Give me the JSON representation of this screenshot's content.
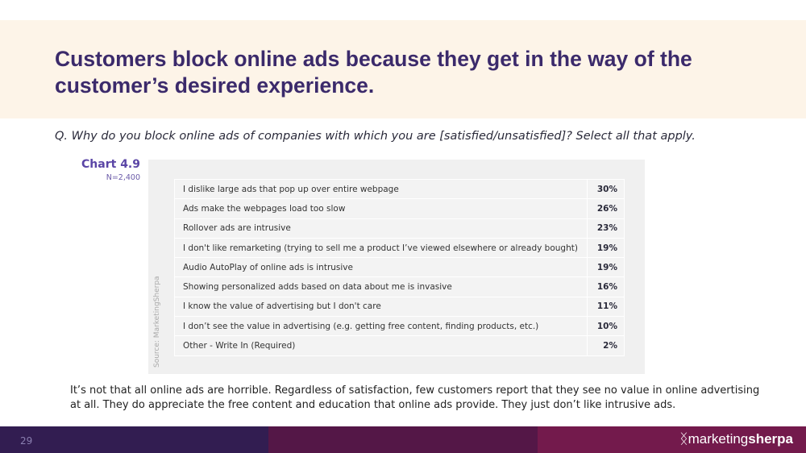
{
  "header": {
    "title": "Customers block online ads because they get in the way of the customer’s desired experience."
  },
  "question": "Q. Why do you block online ads of companies with which you are [satisfied/unsatisfied]? Select all that apply.",
  "chart": {
    "label": "Chart 4.9",
    "n": "N=2,400",
    "source": "Source: MarketingSherpa"
  },
  "chart_data": {
    "type": "table",
    "title": "Chart 4.9",
    "rows": [
      {
        "label": "I dislike large ads that pop up over entire webpage",
        "value": "30%"
      },
      {
        "label": "Ads make the webpages load too slow",
        "value": "26%"
      },
      {
        "label": "Rollover ads are intrusive",
        "value": "23%"
      },
      {
        "label": "I don't like remarketing (trying to sell me a product I’ve viewed elsewhere or already bought)",
        "value": "19%"
      },
      {
        "label": "Audio AutoPlay of online ads is intrusive",
        "value": "19%"
      },
      {
        "label": "Showing personalized adds based on data about me is invasive",
        "value": "16%"
      },
      {
        "label": "I know the value of advertising but I don't care",
        "value": "11%"
      },
      {
        "label": "I don’t see the value in advertising (e.g. getting free content, finding products, etc.)",
        "value": "10%"
      },
      {
        "label": "Other - Write In (Required)",
        "value": "2%"
      }
    ]
  },
  "body_text": "It’s not that all online ads are horrible. Regardless of satisfaction, few customers report that they see no value in online advertising at all. They do appreciate the free content and education that online ads provide. They just don’t like intrusive ads.",
  "footer": {
    "page": "29",
    "logo_a": "marketing",
    "logo_b": "sherpa",
    "colors": [
      "#321d51",
      "#541747",
      "#731a4c"
    ]
  }
}
